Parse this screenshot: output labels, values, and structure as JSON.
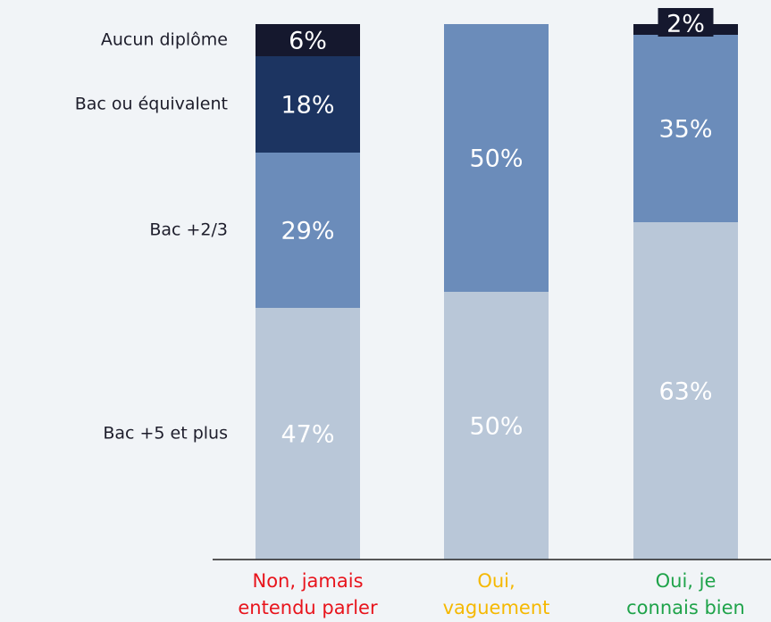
{
  "chart_data": {
    "type": "stacked_bar",
    "categories": [
      "Non, jamais\nentendu parler",
      "Oui,\nvaguement",
      "Oui, je\nconnais bien"
    ],
    "category_colors": [
      "#e8141c",
      "#f5b800",
      "#1fa34a"
    ],
    "series": [
      {
        "name": "Bac +5 et plus",
        "color": "#b9c7d8",
        "values": [
          47,
          50,
          63
        ],
        "value_labels": [
          "47%",
          "50%",
          "63%"
        ]
      },
      {
        "name": "Bac +2/3",
        "color": "#6b8cba",
        "values": [
          29,
          50,
          35
        ],
        "value_labels": [
          "29%",
          "50%",
          "35%"
        ]
      },
      {
        "name": "Bac ou équivalent",
        "color": "#1c3461",
        "values": [
          18,
          0,
          0
        ],
        "value_labels": [
          "18%",
          null,
          null
        ]
      },
      {
        "name": "Aucun diplôme",
        "color": "#15182e",
        "values": [
          6,
          0,
          2
        ],
        "value_labels": [
          "6%",
          null,
          "2%"
        ]
      }
    ]
  }
}
